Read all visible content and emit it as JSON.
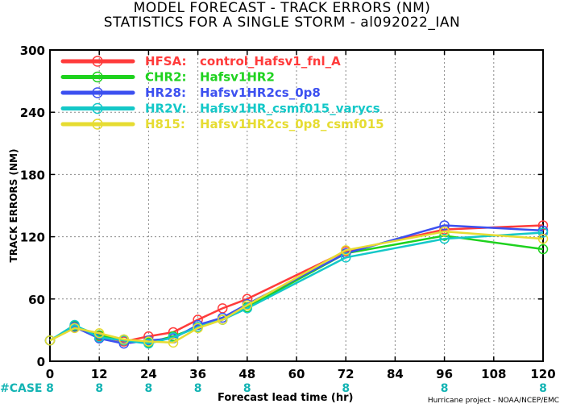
{
  "title_line1": "MODEL FORECAST - TRACK ERRORS (NM)",
  "title_line2": "STATISTICS FOR A SINGLE STORM - al092022_IAN",
  "credit": "Hurricane project - NOAA/NCEP/EMC",
  "chart_data": {
    "type": "line",
    "xlabel": "Forecast lead time (hr)",
    "ylabel": "TRACK ERRORS (NM)",
    "xlim": [
      0,
      120
    ],
    "ylim": [
      0,
      300
    ],
    "x_ticks": [
      0,
      12,
      24,
      36,
      48,
      60,
      72,
      84,
      96,
      108,
      120
    ],
    "y_ticks": [
      0,
      60,
      120,
      180,
      240,
      300
    ],
    "y_tick_labels": [
      "0",
      "60",
      "120",
      "180",
      "240",
      "300"
    ],
    "grid": true,
    "legend_position": "top-left",
    "case_label": "#CASE",
    "case_x": [
      0,
      12,
      24,
      36,
      48,
      72,
      96,
      120
    ],
    "case_counts": [
      "8",
      "8",
      "8",
      "8",
      "8",
      "8",
      "8",
      "8"
    ],
    "series": [
      {
        "tag": "HFSA:",
        "name": "control_Hafsv1_fnl_A",
        "color": "#ff3b3b",
        "x": [
          0,
          6,
          12,
          18,
          24,
          30,
          36,
          42,
          48,
          72,
          96,
          120
        ],
        "y": [
          20,
          33,
          24,
          19,
          24,
          28,
          40,
          51,
          60,
          106,
          127,
          131
        ]
      },
      {
        "tag": "CHR2:",
        "name": "Hafsv1HR2",
        "color": "#1ed21e",
        "x": [
          0,
          6,
          12,
          18,
          24,
          30,
          36,
          42,
          48,
          72,
          96,
          120
        ],
        "y": [
          20,
          34,
          25,
          21,
          18,
          24,
          33,
          40,
          52,
          104,
          121,
          108
        ]
      },
      {
        "tag": "HR28:",
        "name": "Hafsv1HR2cs_0p8",
        "color": "#3c50f0",
        "x": [
          0,
          6,
          12,
          18,
          24,
          30,
          36,
          42,
          48,
          72,
          96,
          120
        ],
        "y": [
          20,
          33,
          22,
          17,
          20,
          22,
          35,
          42,
          55,
          104,
          131,
          126
        ]
      },
      {
        "tag": "HR2V:",
        "name": "Hafsv1HR_csmf015_varycs",
        "color": "#14c8c8",
        "x": [
          0,
          6,
          12,
          18,
          24,
          30,
          36,
          42,
          48,
          72,
          96,
          120
        ],
        "y": [
          20,
          35,
          23,
          20,
          17,
          23,
          33,
          40,
          51,
          100,
          118,
          124
        ]
      },
      {
        "tag": "H815:",
        "name": "Hafsv1HR2cs_0p8_csmf015",
        "color": "#e6dc32",
        "x": [
          0,
          6,
          12,
          18,
          24,
          30,
          36,
          42,
          48,
          72,
          96,
          120
        ],
        "y": [
          20,
          32,
          27,
          21,
          19,
          18,
          32,
          40,
          54,
          107,
          125,
          118
        ]
      }
    ]
  }
}
